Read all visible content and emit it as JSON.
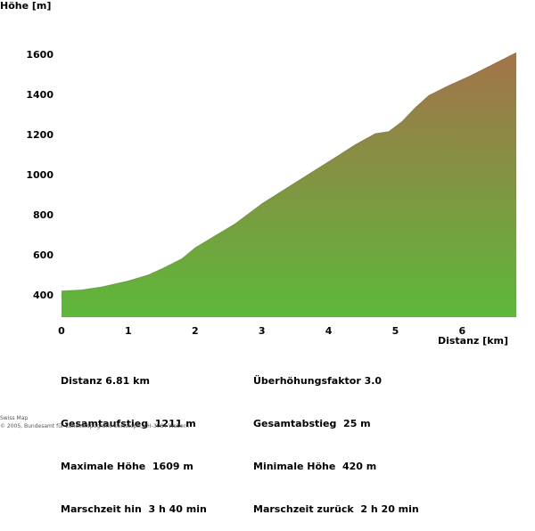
{
  "chart_data": {
    "type": "area",
    "ylabel": "Höhe [m]",
    "xlabel": "Distanz [km]",
    "yticks": [
      400,
      600,
      800,
      1000,
      1200,
      1400,
      1600
    ],
    "xticks": [
      0,
      1,
      2,
      3,
      4,
      5,
      6
    ],
    "xlim": [
      0,
      6.81
    ],
    "ylim": [
      280,
      1660
    ],
    "x": [
      0,
      0.3,
      0.6,
      1.0,
      1.3,
      1.5,
      1.8,
      2.0,
      2.3,
      2.6,
      3.0,
      3.5,
      4.0,
      4.4,
      4.7,
      4.9,
      5.1,
      5.3,
      5.5,
      5.8,
      6.1,
      6.4,
      6.81
    ],
    "values": [
      420,
      425,
      440,
      470,
      500,
      530,
      580,
      635,
      695,
      755,
      855,
      960,
      1065,
      1150,
      1205,
      1215,
      1265,
      1335,
      1395,
      1445,
      1490,
      1540,
      1609
    ],
    "colors": {
      "low": "#5db83a",
      "high": "#a3734a"
    }
  },
  "stats": {
    "left": [
      "Distanz 6.81 km",
      "Gesamtaufstieg  1211 m",
      "Maximale Höhe  1609 m",
      "Marschzeit hin  3 h 40 min"
    ],
    "right": [
      "Überhöhungsfaktor 3.0",
      "Gesamtabstieg  25 m",
      "Minimale Höhe  420 m",
      "Marschzeit zurück  2 h 20 min"
    ]
  },
  "credits": {
    "line1": "Swiss Map",
    "line2": "© 2005, Bundesamt für Landestopografie swisstopo, CH-3084 Wabern"
  }
}
